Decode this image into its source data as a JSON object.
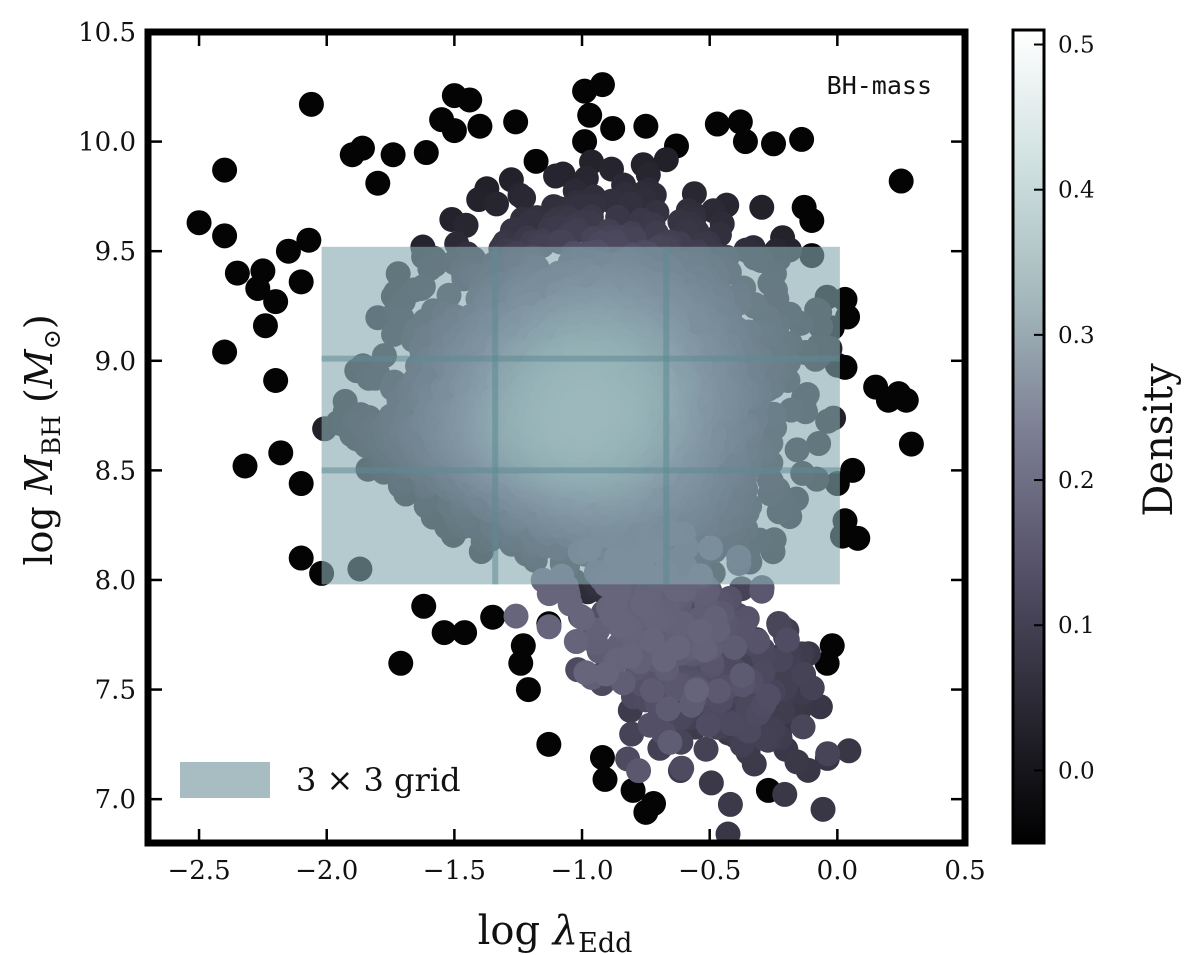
{
  "chart_data": {
    "type": "scatter",
    "title": "",
    "annotation": "BH-mass",
    "xlabel": {
      "base": "log ",
      "symbol": "λ",
      "sub": "Edd"
    },
    "ylabel": {
      "base": "log ",
      "symbol": "M",
      "sub": "BH",
      "unit_open": " (",
      "unit_symbol": "M",
      "unit_sub": "⊙",
      "unit_close": ")"
    },
    "xlim": [
      -2.7,
      0.5
    ],
    "ylim": [
      6.8,
      10.5
    ],
    "xticks": [
      -2.5,
      -2.0,
      -1.5,
      -1.0,
      -0.5,
      0.0,
      0.5
    ],
    "xtick_labels": [
      "−2.5",
      "−2.0",
      "−1.5",
      "−1.0",
      "−0.5",
      "0.0",
      "0.5"
    ],
    "yticks": [
      7.0,
      7.5,
      8.0,
      8.5,
      9.0,
      9.5,
      10.0,
      10.5
    ],
    "ytick_labels": [
      "7.0",
      "7.5",
      "8.0",
      "8.5",
      "9.0",
      "9.5",
      "10.0",
      "10.5"
    ],
    "colorbar": {
      "label": "Density",
      "range": [
        -0.05,
        0.51
      ],
      "ticks": [
        0.0,
        0.1,
        0.2,
        0.3,
        0.4,
        0.5
      ],
      "tick_labels": [
        "0.0",
        "0.1",
        "0.2",
        "0.3",
        "0.4",
        "0.5"
      ],
      "colors": [
        "#000000",
        "#2a2833",
        "#545068",
        "#7b7d92",
        "#a3b8bc",
        "#cfe0df",
        "#ffffff"
      ]
    },
    "grid_overlay": {
      "label": "3 × 3 grid",
      "x_edges": [
        -2.02,
        -1.34,
        -0.67,
        0.01
      ],
      "y_edges": [
        7.98,
        8.5,
        9.01,
        9.52
      ],
      "fill_color": "#88a9b0",
      "line_color": "#5f8a93"
    },
    "density_cloud": {
      "center_x": -1.0,
      "center_y": 8.75,
      "sigma_x": 0.38,
      "sigma_y": 0.45,
      "peak_density": 0.38
    },
    "outliers": [
      [
        -2.5,
        9.63
      ],
      [
        -2.4,
        9.87
      ],
      [
        -2.4,
        9.57
      ],
      [
        -2.35,
        9.4
      ],
      [
        -2.25,
        9.41
      ],
      [
        -2.27,
        9.33
      ],
      [
        -2.2,
        9.27
      ],
      [
        -2.24,
        9.16
      ],
      [
        -2.4,
        9.04
      ],
      [
        -2.2,
        8.91
      ],
      [
        -2.1,
        8.44
      ],
      [
        -2.18,
        8.58
      ],
      [
        -2.32,
        8.52
      ],
      [
        -2.1,
        8.1
      ],
      [
        -2.02,
        8.03
      ],
      [
        -1.87,
        8.05
      ],
      [
        -1.71,
        7.62
      ],
      [
        -2.06,
        10.17
      ],
      [
        -1.9,
        9.94
      ],
      [
        -1.86,
        9.97
      ],
      [
        -1.8,
        9.81
      ],
      [
        -1.74,
        9.94
      ],
      [
        -1.61,
        9.95
      ],
      [
        -1.5,
        10.21
      ],
      [
        -1.44,
        10.19
      ],
      [
        -1.55,
        10.1
      ],
      [
        -1.5,
        10.05
      ],
      [
        -1.4,
        10.07
      ],
      [
        -1.26,
        10.09
      ],
      [
        -1.18,
        9.91
      ],
      [
        -0.99,
        10.23
      ],
      [
        -0.92,
        10.26
      ],
      [
        -0.97,
        10.12
      ],
      [
        -0.99,
        10.0
      ],
      [
        -0.88,
        10.06
      ],
      [
        -0.75,
        10.07
      ],
      [
        -0.63,
        9.98
      ],
      [
        -0.47,
        10.08
      ],
      [
        -0.38,
        10.09
      ],
      [
        -0.36,
        10.0
      ],
      [
        -0.25,
        9.99
      ],
      [
        -0.14,
        10.01
      ],
      [
        -0.13,
        9.7
      ],
      [
        -0.1,
        9.64
      ],
      [
        -0.1,
        9.48
      ],
      [
        -0.04,
        9.29
      ],
      [
        -0.02,
        9.15
      ],
      [
        0.04,
        9.2
      ],
      [
        0.03,
        9.28
      ],
      [
        0.0,
        8.98
      ],
      [
        0.03,
        8.97
      ],
      [
        0.15,
        8.88
      ],
      [
        0.2,
        8.82
      ],
      [
        0.25,
        9.82
      ],
      [
        0.24,
        8.85
      ],
      [
        0.27,
        8.82
      ],
      [
        0.29,
        8.62
      ],
      [
        0.06,
        8.5
      ],
      [
        0.0,
        8.44
      ],
      [
        0.03,
        8.27
      ],
      [
        0.02,
        8.2
      ],
      [
        0.08,
        8.19
      ],
      [
        -0.02,
        7.7
      ],
      [
        -0.04,
        7.62
      ],
      [
        -0.27,
        7.04
      ],
      [
        -0.72,
        6.98
      ],
      [
        -0.75,
        6.94
      ],
      [
        -0.8,
        7.04
      ],
      [
        -0.91,
        7.09
      ],
      [
        -0.92,
        7.19
      ],
      [
        -1.13,
        7.25
      ],
      [
        -1.21,
        7.5
      ],
      [
        -1.24,
        7.62
      ],
      [
        -1.23,
        7.7
      ],
      [
        -1.35,
        7.83
      ],
      [
        -1.46,
        7.76
      ],
      [
        -1.54,
        7.76
      ],
      [
        -1.62,
        7.88
      ],
      [
        -1.13,
        7.8
      ],
      [
        -2.07,
        9.55
      ],
      [
        -2.1,
        9.36
      ],
      [
        -2.15,
        9.5
      ]
    ]
  }
}
